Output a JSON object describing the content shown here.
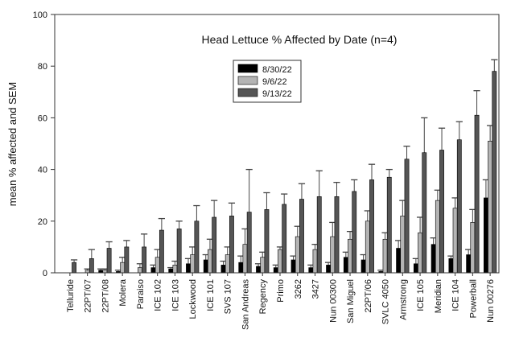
{
  "chart_data": {
    "type": "bar",
    "title": "Head Lettuce % Affected by Date (n=4)",
    "xlabel": "",
    "ylabel": "mean % affected and SEM",
    "ylim": [
      0,
      100
    ],
    "yticks": [
      0,
      20,
      40,
      60,
      80,
      100
    ],
    "legend_position": "top-center",
    "categories": [
      "Telluride",
      "22PT/07",
      "22PT/08",
      "Molera",
      "Paraiso",
      "ICE 102",
      "ICE 103",
      "Lockwood",
      "ICE 101",
      "SVS 107",
      "San Andreas",
      "Regency",
      "Primo",
      "3262",
      "3427",
      "Nun 00300",
      "San Miguel",
      "22PT/06",
      "SVLC 4050",
      "Armstrong",
      "ICE 105",
      "Meridian",
      "ICE 104",
      "Powerball",
      "Nun 00276"
    ],
    "series": [
      {
        "name": "8/30/22",
        "color": "#000000",
        "values": [
          0,
          0,
          1,
          0.5,
          0,
          2,
          1.5,
          3.5,
          5,
          3,
          4,
          2.5,
          2,
          5,
          2,
          3,
          6,
          5,
          0.5,
          9.5,
          3.5,
          11,
          5.5,
          7,
          29
        ],
        "sem": [
          0,
          0,
          0.5,
          0.5,
          0,
          1,
          0.5,
          2,
          2,
          1.5,
          2.5,
          1,
          1,
          1.5,
          1,
          1,
          2,
          2,
          0.5,
          3,
          2,
          2.5,
          1,
          2,
          7
        ]
      },
      {
        "name": "9/6/22",
        "color": "#b4b4b4",
        "values": [
          0,
          1,
          1,
          4,
          2,
          6,
          3,
          7,
          9,
          7,
          11,
          6,
          9,
          14,
          9,
          14,
          13,
          20,
          13,
          22,
          15.5,
          28,
          25,
          19.5,
          51
        ],
        "sem": [
          0,
          0.5,
          0.5,
          2,
          1.5,
          3,
          1.5,
          3,
          4,
          3,
          6,
          2,
          1,
          4,
          2,
          5.5,
          3,
          4,
          2.5,
          6,
          6,
          4,
          4,
          5,
          6
        ]
      },
      {
        "name": "9/13/22",
        "color": "#555555",
        "values": [
          4,
          5.5,
          9.5,
          10,
          10,
          16.5,
          17,
          20,
          21.5,
          22,
          23.5,
          24.5,
          26.5,
          28.5,
          29.5,
          29.5,
          31.5,
          36,
          37,
          44,
          46.5,
          47.5,
          51.5,
          61,
          78
        ],
        "sem": [
          1,
          3.5,
          2.5,
          2.5,
          5,
          4.5,
          3,
          6,
          6.5,
          5,
          16.5,
          6.5,
          4,
          6,
          10,
          5.5,
          4.5,
          6,
          3,
          5,
          13.5,
          8.5,
          7,
          9.5,
          4.5
        ]
      }
    ]
  }
}
